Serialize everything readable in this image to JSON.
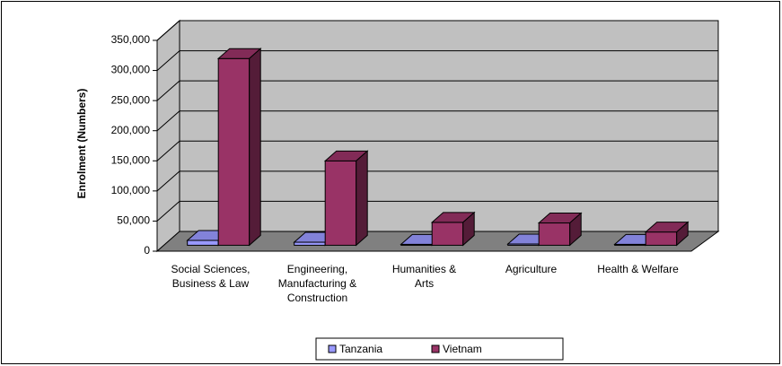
{
  "chart_data": {
    "type": "bar3d",
    "ylabel": "Enrolment (Numbers)",
    "categories": [
      "Social Sciences, Business & Law",
      "Engineering, Manufacturing & Construction",
      "Humanities & Arts",
      "Agriculture",
      "Health & Welfare"
    ],
    "series": [
      {
        "name": "Tanzania",
        "color": "#9999ff",
        "values": [
          8000,
          5000,
          1500,
          2000,
          1500
        ]
      },
      {
        "name": "Vietnam",
        "color": "#993366",
        "values": [
          310000,
          140000,
          38000,
          37000,
          22000
        ]
      }
    ],
    "ylim": [
      0,
      350000
    ],
    "yticks": [
      0,
      {
        "value": 50000,
        "label": "50,000"
      },
      {
        "value": 100000,
        "label": "100,000"
      },
      {
        "value": 150000,
        "label": "150,000"
      },
      {
        "value": 200000,
        "label": "200,000"
      },
      {
        "value": 250000,
        "label": "250,000"
      },
      {
        "value": 300000,
        "label": "300,000"
      },
      {
        "value": 350000,
        "label": "350,000"
      }
    ],
    "grid": true,
    "legend": "bottom"
  }
}
